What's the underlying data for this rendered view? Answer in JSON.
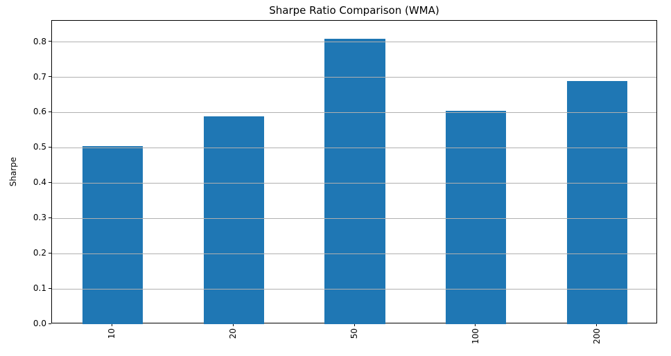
{
  "figure": {
    "background": "#ffffff",
    "spine_color": "#000000",
    "text_color": "#000000"
  },
  "chart_data": {
    "type": "bar",
    "title": "Sharpe Ratio Comparison (WMA)",
    "xlabel": "",
    "ylabel": "Sharpe",
    "categories": [
      "10",
      "20",
      "50",
      "100",
      "200"
    ],
    "values": [
      0.505,
      0.59,
      0.81,
      0.605,
      0.69
    ],
    "ylim": [
      0,
      0.86
    ],
    "yticks": [
      0.0,
      0.1,
      0.2,
      0.3,
      0.4,
      0.5,
      0.6,
      0.7,
      0.8
    ],
    "ytick_decimals": 1,
    "x_tick_rotation_deg": 90,
    "grid": "horizontal",
    "grid_over_bars": true,
    "legend": "none",
    "bar_color": "#1f77b4",
    "grid_color": "#b0b0b0",
    "bar_relative_width": 0.5
  }
}
